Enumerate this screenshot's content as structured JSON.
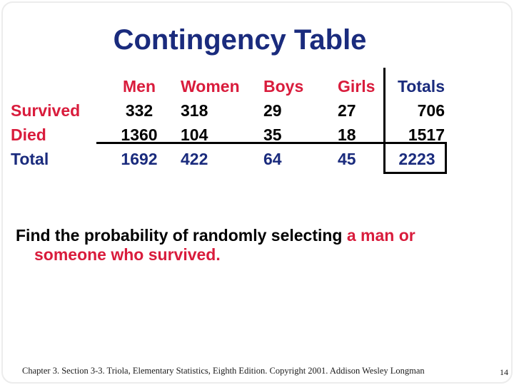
{
  "slide": {
    "title": "Contingency Table",
    "question": {
      "line1_black": "Find the probability of randomly selecting ",
      "line1_red": "a man or",
      "line2_red": "someone who survived."
    },
    "footer": {
      "citation": "Chapter 3.  Section 3-3.  Triola, Elementary Statistics, Eighth Edition. Copyright  2001.  Addison Wesley Longman",
      "page_number": "14"
    },
    "colors": {
      "title_blue": "#1a2b7d",
      "header_red": "#d91c3c",
      "value_black": "#000000",
      "total_blue": "#1a2b7d"
    }
  },
  "table": {
    "column_headers": [
      "Men",
      "Women",
      "Boys",
      "Girls",
      "Totals"
    ],
    "rows": [
      {
        "label": "Survived",
        "values": [
          "332",
          "318",
          "29",
          "27",
          "706"
        ]
      },
      {
        "label": "Died",
        "values": [
          "1360",
          "104",
          "35",
          "18",
          "1517"
        ]
      },
      {
        "label": "Total",
        "values": [
          "1692",
          "422",
          "64",
          "45",
          "2223"
        ]
      }
    ]
  },
  "chart_data": {
    "type": "table",
    "title": "Contingency Table",
    "column_headers": [
      "Men",
      "Women",
      "Boys",
      "Girls",
      "Totals"
    ],
    "row_labels": [
      "Survived",
      "Died",
      "Total"
    ],
    "values": [
      [
        332,
        318,
        29,
        27,
        706
      ],
      [
        1360,
        104,
        35,
        18,
        1517
      ],
      [
        1692,
        422,
        64,
        45,
        2223
      ]
    ]
  }
}
